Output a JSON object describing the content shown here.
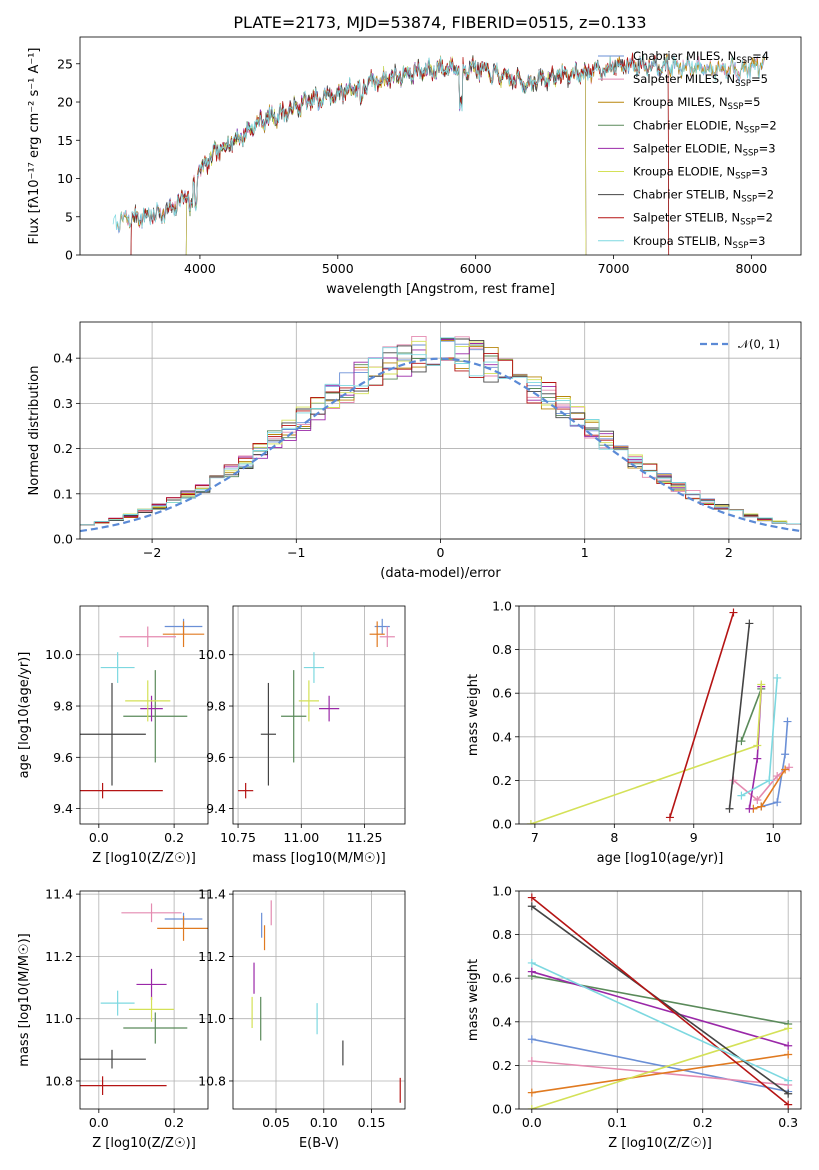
{
  "figure": {
    "title": "PLATE=2173, MJD=53874, FIBERID=0515, z=0.133"
  },
  "chart_data": [
    {
      "id": "spectrum",
      "type": "line",
      "xlabel": "wavelength [Angstrom, rest frame]",
      "ylabel": "Flux [fλ10⁻¹⁷ erg cm⁻² s⁻¹ A⁻¹]",
      "xlim": [
        3130,
        8360
      ],
      "ylim": [
        0,
        28.5
      ],
      "xticks": [
        4000,
        5000,
        6000,
        7000,
        8000
      ],
      "yticks": [
        0,
        5,
        10,
        15,
        20,
        25
      ],
      "grid": false,
      "legend": "right",
      "continuum": {
        "x": [
          3370,
          3500,
          3650,
          3800,
          3900,
          4000,
          4100,
          4200,
          4300,
          4400,
          4500,
          4600,
          4700,
          4800,
          4900,
          5000,
          5100,
          5200,
          5300,
          5400,
          5500,
          5600,
          5700,
          5800,
          5900,
          6000,
          6100,
          6200,
          6300,
          6400,
          6500,
          6600,
          6700,
          6800,
          6900,
          7000,
          7100,
          7200,
          7300,
          7400,
          7500,
          7600,
          7700,
          7800,
          7900,
          8000,
          8100
        ],
        "y": [
          4.2,
          4.8,
          5.2,
          6.0,
          8.0,
          11.0,
          13.0,
          14.5,
          15.5,
          17.0,
          18.0,
          18.5,
          19.3,
          20.2,
          20.7,
          21.0,
          21.8,
          22.3,
          22.8,
          23.3,
          23.7,
          24.0,
          24.3,
          24.5,
          24.5,
          24.5,
          23.8,
          23.3,
          22.8,
          22.5,
          23.0,
          23.5,
          23.6,
          23.8,
          24.2,
          24.7,
          24.8,
          25.0,
          24.9,
          24.7,
          24.6,
          24.5,
          24.4,
          24.2,
          24.2,
          24.5,
          24.8
        ]
      },
      "series": [
        {
          "name": "Chabrier MILES, N_SSP=4",
          "color": "#6a8fd6",
          "range": [
            3400,
            8100
          ]
        },
        {
          "name": "Salpeter MILES, N_SSP=5",
          "color": "#e48ab0",
          "range": [
            3400,
            8100
          ]
        },
        {
          "name": "Kroupa MILES, N_SSP=5",
          "color": "#b8860b",
          "range": [
            3400,
            8100
          ]
        },
        {
          "name": "Chabrier ELODIE, N_SSP=2",
          "color": "#5a8a5a",
          "range": [
            3900,
            6800
          ]
        },
        {
          "name": "Salpeter ELODIE, N_SSP=3",
          "color": "#9a28a8",
          "range": [
            3900,
            6800
          ]
        },
        {
          "name": "Kroupa ELODIE, N_SSP=3",
          "color": "#d4e157",
          "range": [
            3900,
            6800
          ]
        },
        {
          "name": "Chabrier STELIB, N_SSP=2",
          "color": "#444444",
          "range": [
            3500,
            7400
          ]
        },
        {
          "name": "Salpeter STELIB, N_SSP=2",
          "color": "#b51414",
          "range": [
            3500,
            7400
          ]
        },
        {
          "name": "Kroupa STELIB, N_SSP=3",
          "color": "#7dd8e0",
          "range": [
            3370,
            8100
          ]
        }
      ],
      "legend_labels": [
        {
          "main": "Chabrier MILES, N",
          "sub": "SSP",
          "end": "=4",
          "color": "#6a8fd6"
        },
        {
          "main": "Salpeter MILES, N",
          "sub": "SSP",
          "end": "=5",
          "color": "#e48ab0"
        },
        {
          "main": "Kroupa MILES, N",
          "sub": "SSP",
          "end": "=5",
          "color": "#b8860b"
        },
        {
          "main": "Chabrier ELODIE, N",
          "sub": "SSP",
          "end": "=2",
          "color": "#5a8a5a"
        },
        {
          "main": "Salpeter ELODIE, N",
          "sub": "SSP",
          "end": "=3",
          "color": "#9a28a8"
        },
        {
          "main": "Kroupa ELODIE, N",
          "sub": "SSP",
          "end": "=3",
          "color": "#d4e157"
        },
        {
          "main": "Chabrier STELIB, N",
          "sub": "SSP",
          "end": "=2",
          "color": "#444444"
        },
        {
          "main": "Salpeter STELIB, N",
          "sub": "SSP",
          "end": "=2",
          "color": "#b51414"
        },
        {
          "main": "Kroupa STELIB, N",
          "sub": "SSP",
          "end": "=3",
          "color": "#7dd8e0"
        }
      ]
    },
    {
      "id": "residuals",
      "type": "histogram",
      "xlabel": "(data-model)/error",
      "ylabel": "Normed distribution",
      "xlim": [
        -2.5,
        2.5
      ],
      "ylim": [
        0,
        0.48
      ],
      "xticks": [
        -2,
        -1,
        0,
        1,
        2
      ],
      "yticks": [
        0.0,
        0.1,
        0.2,
        0.3,
        0.4
      ],
      "grid": true,
      "legend": "top-right",
      "gaussian_label": "𝒩(0, 1)",
      "gaussian_color": "#5b8ad6",
      "bin_width": 0.1
    },
    {
      "id": "age_vs_Z",
      "type": "scatter-errorbar",
      "xlabel": "Z [log10(Z/Z☉)]",
      "ylabel": "age  [log10(age/yr)]",
      "xlim": [
        -0.05,
        0.29
      ],
      "ylim": [
        9.34,
        10.19
      ],
      "xticks": [
        0.0,
        0.2
      ],
      "yticks": [
        9.4,
        9.6,
        9.8,
        10.0
      ],
      "grid": true,
      "points": [
        {
          "x": 0.225,
          "y": 10.11,
          "xe": 0.05,
          "ye": 0.03,
          "color": "#6a8fd6"
        },
        {
          "x": 0.13,
          "y": 10.07,
          "xe": 0.075,
          "ye": 0.04,
          "color": "#e48ab0"
        },
        {
          "x": 0.225,
          "y": 10.08,
          "xe": 0.055,
          "ye": 0.05,
          "color": "#e07a20"
        },
        {
          "x": 0.15,
          "y": 9.76,
          "xe": 0.085,
          "ye": 0.18,
          "color": "#5a8a5a"
        },
        {
          "x": 0.14,
          "y": 9.79,
          "xe": 0.03,
          "ye": 0.05,
          "color": "#9a28a8"
        },
        {
          "x": 0.13,
          "y": 9.82,
          "xe": 0.06,
          "ye": 0.08,
          "color": "#d4e157"
        },
        {
          "x": 0.035,
          "y": 9.69,
          "xe": 0.09,
          "ye": 0.2,
          "color": "#444444"
        },
        {
          "x": 0.01,
          "y": 9.47,
          "xe": 0.16,
          "ye": 0.03,
          "color": "#b51414"
        },
        {
          "x": 0.05,
          "y": 9.95,
          "xe": 0.045,
          "ye": 0.06,
          "color": "#7dd8e0"
        }
      ]
    },
    {
      "id": "age_vs_mass",
      "type": "scatter-errorbar",
      "xlabel": "mass [log10(M/M☉)]",
      "ylabel": "",
      "xlim": [
        10.73,
        11.41
      ],
      "ylim": [
        9.34,
        10.19
      ],
      "xticks": [
        10.75,
        11.0,
        11.25
      ],
      "yticks": [
        9.4,
        9.6,
        9.8,
        10.0
      ],
      "grid": true,
      "points": [
        {
          "x": 11.32,
          "y": 10.11,
          "xe": 0.03,
          "ye": 0.03,
          "color": "#6a8fd6"
        },
        {
          "x": 11.34,
          "y": 10.07,
          "xe": 0.03,
          "ye": 0.04,
          "color": "#e48ab0"
        },
        {
          "x": 11.3,
          "y": 10.08,
          "xe": 0.03,
          "ye": 0.05,
          "color": "#e07a20"
        },
        {
          "x": 10.97,
          "y": 9.76,
          "xe": 0.05,
          "ye": 0.18,
          "color": "#5a8a5a"
        },
        {
          "x": 11.11,
          "y": 9.79,
          "xe": 0.04,
          "ye": 0.05,
          "color": "#9a28a8"
        },
        {
          "x": 11.03,
          "y": 9.82,
          "xe": 0.04,
          "ye": 0.08,
          "color": "#d4e157"
        },
        {
          "x": 10.87,
          "y": 9.69,
          "xe": 0.03,
          "ye": 0.2,
          "color": "#444444"
        },
        {
          "x": 10.78,
          "y": 9.47,
          "xe": 0.03,
          "ye": 0.03,
          "color": "#b51414"
        },
        {
          "x": 11.05,
          "y": 9.95,
          "xe": 0.04,
          "ye": 0.06,
          "color": "#7dd8e0"
        }
      ]
    },
    {
      "id": "weight_vs_age",
      "type": "line",
      "xlabel": "age  [log10(age/yr)]",
      "ylabel": "mass weight",
      "xlim": [
        6.8,
        10.35
      ],
      "ylim": [
        0,
        1.0
      ],
      "xticks": [
        7,
        8,
        9,
        10
      ],
      "yticks": [
        0.0,
        0.2,
        0.4,
        0.6,
        0.8,
        1.0
      ],
      "grid": true,
      "series": [
        {
          "color": "#6a8fd6",
          "x": [
            9.85,
            10.05,
            10.15,
            10.18
          ],
          "y": [
            0.08,
            0.1,
            0.32,
            0.47
          ]
        },
        {
          "color": "#e48ab0",
          "x": [
            9.5,
            9.8,
            10.05,
            10.2
          ],
          "y": [
            0.2,
            0.11,
            0.22,
            0.26
          ]
        },
        {
          "color": "#e07a20",
          "x": [
            9.75,
            9.85,
            10.15
          ],
          "y": [
            0.07,
            0.08,
            0.25
          ]
        },
        {
          "color": "#5a8a5a",
          "x": [
            9.6,
            9.85
          ],
          "y": [
            0.38,
            0.62
          ]
        },
        {
          "color": "#9a28a8",
          "x": [
            9.7,
            9.8,
            9.85
          ],
          "y": [
            0.07,
            0.3,
            0.63
          ]
        },
        {
          "color": "#d4e157",
          "x": [
            6.95,
            9.8,
            9.85
          ],
          "y": [
            0.0,
            0.36,
            0.64
          ]
        },
        {
          "color": "#444444",
          "x": [
            9.45,
            9.7
          ],
          "y": [
            0.07,
            0.92
          ]
        },
        {
          "color": "#b51414",
          "x": [
            8.7,
            9.5
          ],
          "y": [
            0.03,
            0.97
          ]
        },
        {
          "color": "#7dd8e0",
          "x": [
            9.6,
            9.95,
            10.05
          ],
          "y": [
            0.13,
            0.2,
            0.67
          ]
        }
      ]
    },
    {
      "id": "mass_vs_Z",
      "type": "scatter-errorbar",
      "xlabel": "Z [log10(Z/Z☉)]",
      "ylabel": "mass [log10(M/M☉)]",
      "xlim": [
        -0.05,
        0.29
      ],
      "ylim": [
        10.71,
        11.41
      ],
      "xticks": [
        0.0,
        0.2
      ],
      "yticks": [
        10.8,
        11.0,
        11.2,
        11.4
      ],
      "grid": true,
      "points": [
        {
          "x": 0.225,
          "y": 11.32,
          "xe": 0.05,
          "ye": 0.02,
          "color": "#6a8fd6"
        },
        {
          "x": 0.14,
          "y": 11.34,
          "xe": 0.08,
          "ye": 0.03,
          "color": "#e48ab0"
        },
        {
          "x": 0.225,
          "y": 11.29,
          "xe": 0.07,
          "ye": 0.04,
          "color": "#e07a20"
        },
        {
          "x": 0.15,
          "y": 10.97,
          "xe": 0.085,
          "ye": 0.05,
          "color": "#5a8a5a"
        },
        {
          "x": 0.14,
          "y": 11.11,
          "xe": 0.04,
          "ye": 0.05,
          "color": "#9a28a8"
        },
        {
          "x": 0.14,
          "y": 11.03,
          "xe": 0.06,
          "ye": 0.04,
          "color": "#d4e157"
        },
        {
          "x": 0.035,
          "y": 10.87,
          "xe": 0.09,
          "ye": 0.03,
          "color": "#444444"
        },
        {
          "x": 0.01,
          "y": 10.785,
          "xe": 0.17,
          "ye": 0.03,
          "color": "#b51414"
        },
        {
          "x": 0.05,
          "y": 11.05,
          "xe": 0.045,
          "ye": 0.04,
          "color": "#7dd8e0"
        }
      ]
    },
    {
      "id": "mass_vs_ebv",
      "type": "scatter-errorbar",
      "xlabel": "E(B-V)",
      "ylabel": "",
      "xlim": [
        0.005,
        0.185
      ],
      "ylim": [
        10.71,
        11.41
      ],
      "xticks": [
        0.05,
        0.1,
        0.15
      ],
      "yticks": [
        10.8,
        11.0,
        11.2,
        11.4
      ],
      "grid": true,
      "points": [
        {
          "x": 0.035,
          "y": 11.3,
          "xe": 0.0,
          "ye": 0.04,
          "color": "#6a8fd6"
        },
        {
          "x": 0.045,
          "y": 11.34,
          "xe": 0.0,
          "ye": 0.04,
          "color": "#e48ab0"
        },
        {
          "x": 0.038,
          "y": 11.26,
          "xe": 0.0,
          "ye": 0.04,
          "color": "#e07a20"
        },
        {
          "x": 0.034,
          "y": 11.0,
          "xe": 0.0,
          "ye": 0.07,
          "color": "#5a8a5a"
        },
        {
          "x": 0.027,
          "y": 11.13,
          "xe": 0.0,
          "ye": 0.05,
          "color": "#9a28a8"
        },
        {
          "x": 0.025,
          "y": 11.02,
          "xe": 0.0,
          "ye": 0.05,
          "color": "#d4e157"
        },
        {
          "x": 0.12,
          "y": 10.89,
          "xe": 0.0,
          "ye": 0.04,
          "color": "#444444"
        },
        {
          "x": 0.18,
          "y": 10.77,
          "xe": 0.0,
          "ye": 0.04,
          "color": "#b51414"
        },
        {
          "x": 0.093,
          "y": 11.0,
          "xe": 0.0,
          "ye": 0.05,
          "color": "#7dd8e0"
        }
      ]
    },
    {
      "id": "weight_vs_Z",
      "type": "line",
      "xlabel": "Z [log10(Z/Z☉)]",
      "ylabel": "mass weight",
      "xlim": [
        -0.015,
        0.315
      ],
      "ylim": [
        0,
        1.0
      ],
      "xticks": [
        0.0,
        0.1,
        0.2,
        0.3
      ],
      "yticks": [
        0.0,
        0.2,
        0.4,
        0.6,
        0.8,
        1.0
      ],
      "grid": true,
      "series": [
        {
          "color": "#6a8fd6",
          "x": [
            0.0,
            0.3
          ],
          "y": [
            0.32,
            0.08
          ]
        },
        {
          "color": "#e48ab0",
          "x": [
            0.0,
            0.3
          ],
          "y": [
            0.22,
            0.11
          ]
        },
        {
          "color": "#e07a20",
          "x": [
            0.0,
            0.3
          ],
          "y": [
            0.075,
            0.25
          ]
        },
        {
          "color": "#5a8a5a",
          "x": [
            0.0,
            0.3
          ],
          "y": [
            0.61,
            0.39
          ]
        },
        {
          "color": "#9a28a8",
          "x": [
            0.0,
            0.3
          ],
          "y": [
            0.63,
            0.29
          ]
        },
        {
          "color": "#d4e157",
          "x": [
            0.0,
            0.3
          ],
          "y": [
            0.0,
            0.37
          ]
        },
        {
          "color": "#444444",
          "x": [
            0.0,
            0.3
          ],
          "y": [
            0.93,
            0.07
          ]
        },
        {
          "color": "#b51414",
          "x": [
            0.0,
            0.3
          ],
          "y": [
            0.97,
            0.02
          ]
        },
        {
          "color": "#7dd8e0",
          "x": [
            0.0,
            0.3
          ],
          "y": [
            0.67,
            0.13
          ]
        }
      ]
    }
  ]
}
